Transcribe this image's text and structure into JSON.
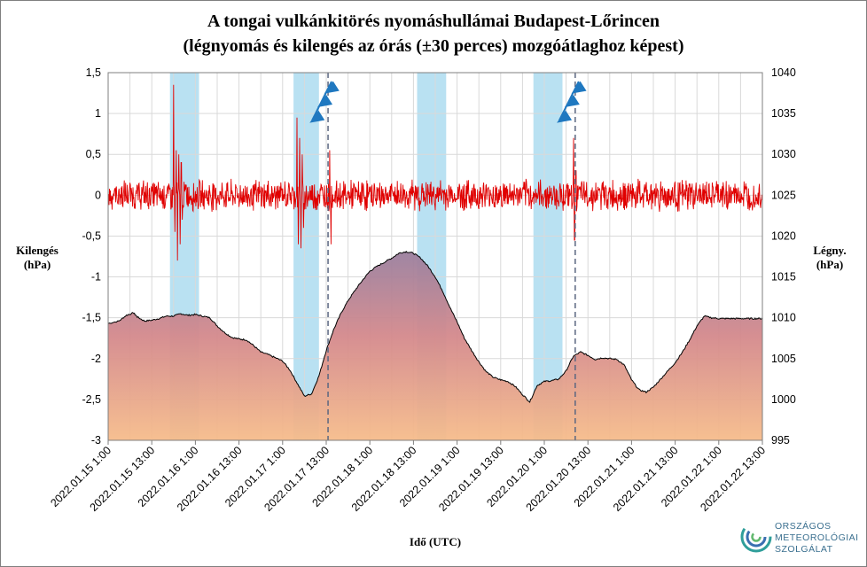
{
  "title": {
    "line1": "A tongai vulkánkitörés nyomáshullámai  Budapest-Lőrincen",
    "line2": "(légnyomás és kilengés az órás (±30 perces) mozgóátlaghoz  képest)"
  },
  "chart_data": {
    "type": "line",
    "title": "A tongai vulkánkitörés nyomáshullámai  Budapest-Lőrincen",
    "subtitle": "(légnyomás és kilengés az órás (±30 perces) mozgóátlaghoz  képest)",
    "xlabel": "Idő (UTC)",
    "ylabel_left": "Kilengés\n(hPa)",
    "ylabel_left_lines": [
      "Kilengés",
      "(hPa)"
    ],
    "ylabel_right": "Légny.\n(hPa)",
    "ylabel_right_lines": [
      "Légny.",
      "(hPa)"
    ],
    "x_unit": "hours since 2022.01.15 1:00",
    "xlim": [
      0,
      180
    ],
    "ylim_left": [
      -3,
      1.5
    ],
    "ylim_right": [
      995,
      1040
    ],
    "y_left_ticks": [
      "1,5",
      "1",
      "0,5",
      "0",
      "-0,5",
      "-1",
      "-1,5",
      "-2",
      "-2,5",
      "-3"
    ],
    "y_right_ticks": [
      "1040",
      "1035",
      "1030",
      "1025",
      "1020",
      "1015",
      "1010",
      "1005",
      "1000",
      "995"
    ],
    "x_tick_labels": [
      "2022.01.15 1:00",
      "2022.01.15 13:00",
      "2022.01.16 1:00",
      "2022.01.16 13:00",
      "2022.01.17 1:00",
      "2022.01.17 13:00",
      "2022.01.18 1:00",
      "2022.01.18 13:00",
      "2022.01.19 1:00",
      "2022.01.19 13:00",
      "2022.01.20 1:00",
      "2022.01.20 13:00",
      "2022.01.21 1:00",
      "2022.01.21 13:00",
      "2022.01.22 1:00",
      "2022.01.22 13:00"
    ],
    "grid": true,
    "series": [
      {
        "name": "Légnyomás",
        "axis": "right",
        "style": "filled-area with black outline, gradient purple-red to orange",
        "x": [
          0,
          3,
          5,
          7,
          8,
          10,
          12,
          14,
          16,
          18,
          20,
          22,
          24,
          26,
          28,
          30,
          32,
          34,
          36,
          38,
          40,
          42,
          44,
          46,
          48,
          50,
          52,
          54,
          56,
          58,
          60,
          62,
          64,
          66,
          68,
          70,
          72,
          74,
          76,
          78,
          80,
          82,
          84,
          86,
          88,
          90,
          92,
          94,
          96,
          98,
          100,
          102,
          104,
          106,
          108,
          110,
          112,
          114,
          116,
          118,
          120,
          122,
          124,
          126,
          128,
          130,
          132,
          134,
          136,
          138,
          140,
          142,
          144,
          146,
          148,
          150,
          152,
          154,
          156,
          158,
          160,
          162,
          164,
          166,
          168,
          170,
          172,
          174,
          176,
          178,
          180
        ],
        "values": [
          1009.3,
          1009.6,
          1010.3,
          1010.6,
          1010.1,
          1009.6,
          1009.7,
          1009.9,
          1010.2,
          1010.2,
          1010.5,
          1010.3,
          1010.4,
          1010.2,
          1010.0,
          1009.0,
          1008.2,
          1007.6,
          1007.4,
          1007.3,
          1006.6,
          1005.8,
          1005.5,
          1005.1,
          1004.7,
          1003.6,
          1002.0,
          1000.4,
          1000.7,
          1002.9,
          1006.0,
          1008.5,
          1010.5,
          1012.1,
          1013.4,
          1014.6,
          1015.7,
          1016.3,
          1016.8,
          1017.3,
          1017.9,
          1018.1,
          1017.9,
          1017.3,
          1016.3,
          1015.0,
          1013.3,
          1011.3,
          1009.5,
          1007.5,
          1006.0,
          1004.6,
          1003.4,
          1002.7,
          1002.4,
          1002.2,
          1001.6,
          1000.6,
          999.7,
          1001.7,
          1002.2,
          1002.3,
          1002.5,
          1003.5,
          1005.3,
          1005.8,
          1005.4,
          1004.9,
          1005.1,
          1005.0,
          1004.9,
          1004.2,
          1002.4,
          1001.2,
          1000.9,
          1001.5,
          1002.5,
          1003.5,
          1004.5,
          1005.8,
          1007.3,
          1009.0,
          1010.2,
          1010.0,
          1009.9,
          1009.9,
          1009.9,
          1009.9,
          1009.9,
          1009.9,
          1009.9
        ]
      },
      {
        "name": "Kilengés",
        "axis": "left",
        "color": "#e00000",
        "style": "noisy line around 0 with amplitude about ±0.15",
        "spikes": [
          {
            "x": 18,
            "values": [
              1.35,
              -0.45,
              0.55,
              -0.8,
              0.5,
              -0.6,
              0.4,
              -0.3
            ]
          },
          {
            "x": 52,
            "values": [
              0.95,
              -0.6,
              0.7,
              -0.65,
              0.5,
              -0.4
            ]
          },
          {
            "x": 61,
            "values": [
              0.55,
              -0.6
            ]
          },
          {
            "x": 128,
            "values": [
              0.7,
              -0.55,
              0.3
            ]
          }
        ]
      }
    ],
    "highlight_bands_x": [
      [
        17,
        25
      ],
      [
        51,
        58
      ],
      [
        85,
        93
      ],
      [
        117,
        125
      ]
    ],
    "dashed_lines_x": [
      60.5,
      128.5
    ],
    "colors": {
      "kilenges": "#e00000",
      "band": "#7fc8e8",
      "pressure_top": "#9a7a9a",
      "pressure_bottom": "#f5b585",
      "outline": "#000000",
      "front_flag": "#1f78c0"
    }
  },
  "logo": {
    "line1": "ORSZÁGOS",
    "line2": "METEOROLÓGIAI",
    "line3": "SZOLGÁLAT"
  }
}
